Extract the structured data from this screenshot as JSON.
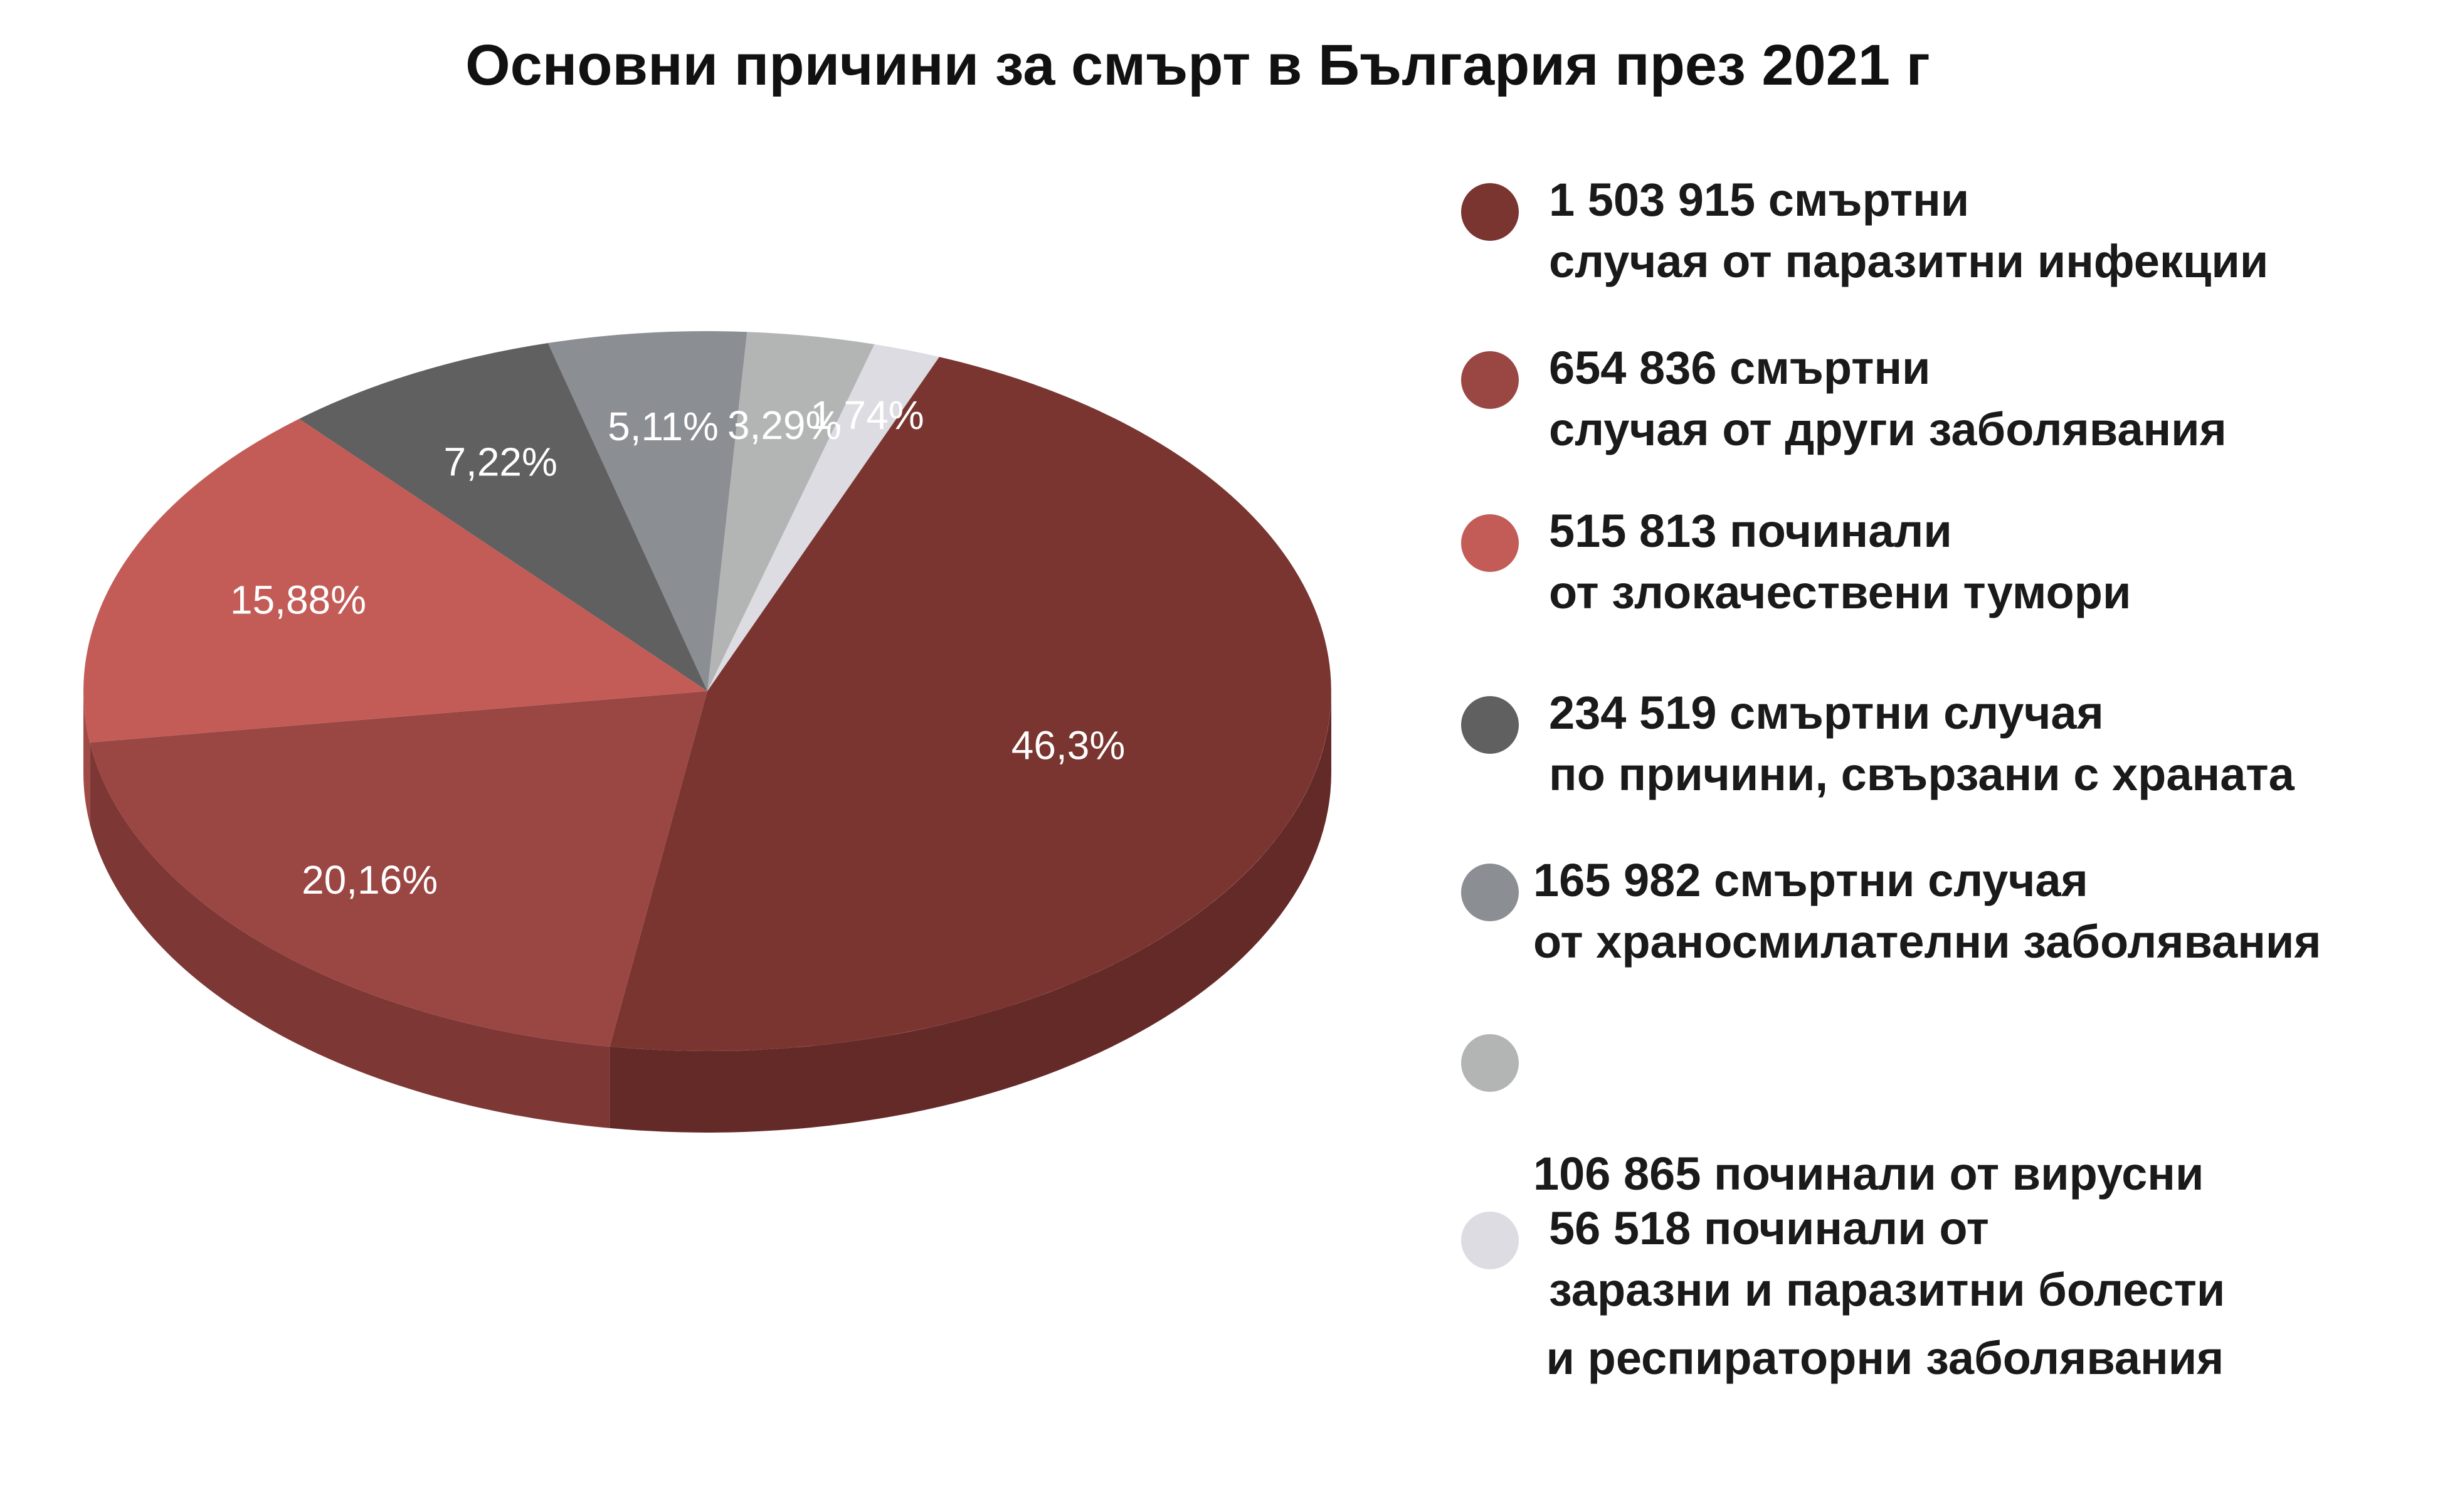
{
  "chart_data": {
    "type": "pie",
    "title": "Основни причини за смърт в България през 2021 г",
    "slices": [
      {
        "label_line1": "1 503 915 смъртни",
        "label_line2": "случая от паразитни инфекции",
        "value": 1503915,
        "percent": 46.3,
        "percent_label": "46,3%",
        "color": "#7a3530",
        "side_color": "#642a28"
      },
      {
        "label_line1": "654 836 смъртни",
        "label_line2": "случая от други заболявания",
        "value": 654836,
        "percent": 20.16,
        "percent_label": "20,16%",
        "color": "#9a4744",
        "side_color": "#7d3836"
      },
      {
        "label_line1": "515 813 починали",
        "label_line2": "от злокачествени тумори",
        "value": 515813,
        "percent": 15.88,
        "percent_label": "15,88%",
        "color": "#c35c57",
        "side_color": "#a04a46"
      },
      {
        "label_line1": "234 519 смъртни случая",
        "label_line2": "по причини, свързани с храната",
        "value": 234519,
        "percent": 7.22,
        "percent_label": "7,22%",
        "color": "#606060",
        "side_color": "#4a4a4a"
      },
      {
        "label_line1": "165 982 смъртни случая",
        "label_line2": "от храносмилателни заболявания",
        "value": 165982,
        "percent": 5.11,
        "percent_label": "5,11%",
        "color": "#8b8e93",
        "side_color": "#727579"
      },
      {
        "label_line1": "106 865 починали от вирусни",
        "label_line2": " и респираторни заболявания",
        "value": 106865,
        "percent": 3.29,
        "percent_label": "3,29%",
        "color": "#b3b5b5",
        "side_color": "#989a9a"
      },
      {
        "label_line1": "56 518 починали от",
        "label_line2": "заразни и паразитни болести",
        "value": 56518,
        "percent": 1.74,
        "percent_label": "1,74%",
        "color": "#dcdce2",
        "side_color": "#c2c2c8"
      }
    ],
    "legend_position": "right"
  }
}
